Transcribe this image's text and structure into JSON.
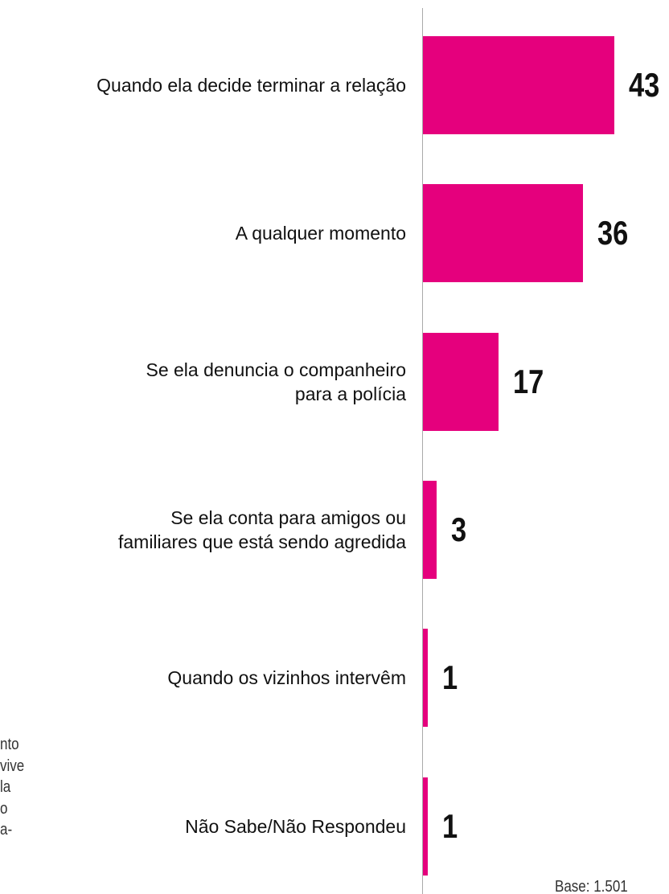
{
  "chart_data": {
    "type": "bar",
    "orientation": "horizontal",
    "categories": [
      "Quando ela decide terminar a relação",
      "A qualquer momento",
      "Se ela denuncia o companheiro\npara a polícia",
      "Se ela conta para amigos ou\nfamiliares que está sendo agredida",
      "Quando os vizinhos intervêm",
      "Não Sabe/Não Respondeu"
    ],
    "values": [
      43,
      36,
      17,
      3,
      1,
      1
    ],
    "color": "#e5007d",
    "note": [
      "nto",
      "vive",
      "la",
      "o",
      "a-"
    ],
    "base": "Base: 1.501"
  }
}
